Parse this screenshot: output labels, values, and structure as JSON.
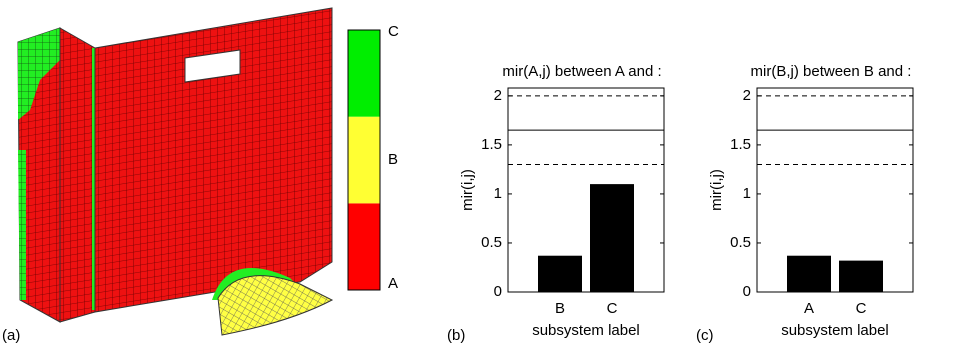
{
  "colorbar": {
    "labels": [
      "A",
      "B",
      "C"
    ],
    "colors": [
      "#ff0000",
      "#ffff33",
      "#00ee00"
    ]
  },
  "mesh_label": "(a)",
  "chart_data": [
    {
      "type": "bar",
      "label": "(b)",
      "title": "mir(A,j) between A and :",
      "x_label": "subsystem label",
      "y_label": "mir(i,j)",
      "categories": [
        "B",
        "C"
      ],
      "values": [
        0.37,
        1.1
      ],
      "color": "#000000",
      "ylim": [
        0,
        2.08
      ],
      "yticks": [
        0,
        0.5,
        1,
        1.5,
        2
      ],
      "reference_lines": [
        {
          "value": 2,
          "style": "dashed"
        },
        {
          "value": 1.65,
          "style": "solid"
        },
        {
          "value": 1.3,
          "style": "dashed"
        }
      ]
    },
    {
      "type": "bar",
      "label": "(c)",
      "title": "mir(B,j) between B and :",
      "x_label": "subsystem label",
      "y_label": "mir(i,j)",
      "categories": [
        "A",
        "C"
      ],
      "values": [
        0.37,
        0.32
      ],
      "color": "#000000",
      "ylim": [
        0,
        2.08
      ],
      "yticks": [
        0,
        0.5,
        1,
        1.5,
        2
      ],
      "reference_lines": [
        {
          "value": 2,
          "style": "dashed"
        },
        {
          "value": 1.65,
          "style": "solid"
        },
        {
          "value": 1.3,
          "style": "dashed"
        }
      ]
    }
  ]
}
